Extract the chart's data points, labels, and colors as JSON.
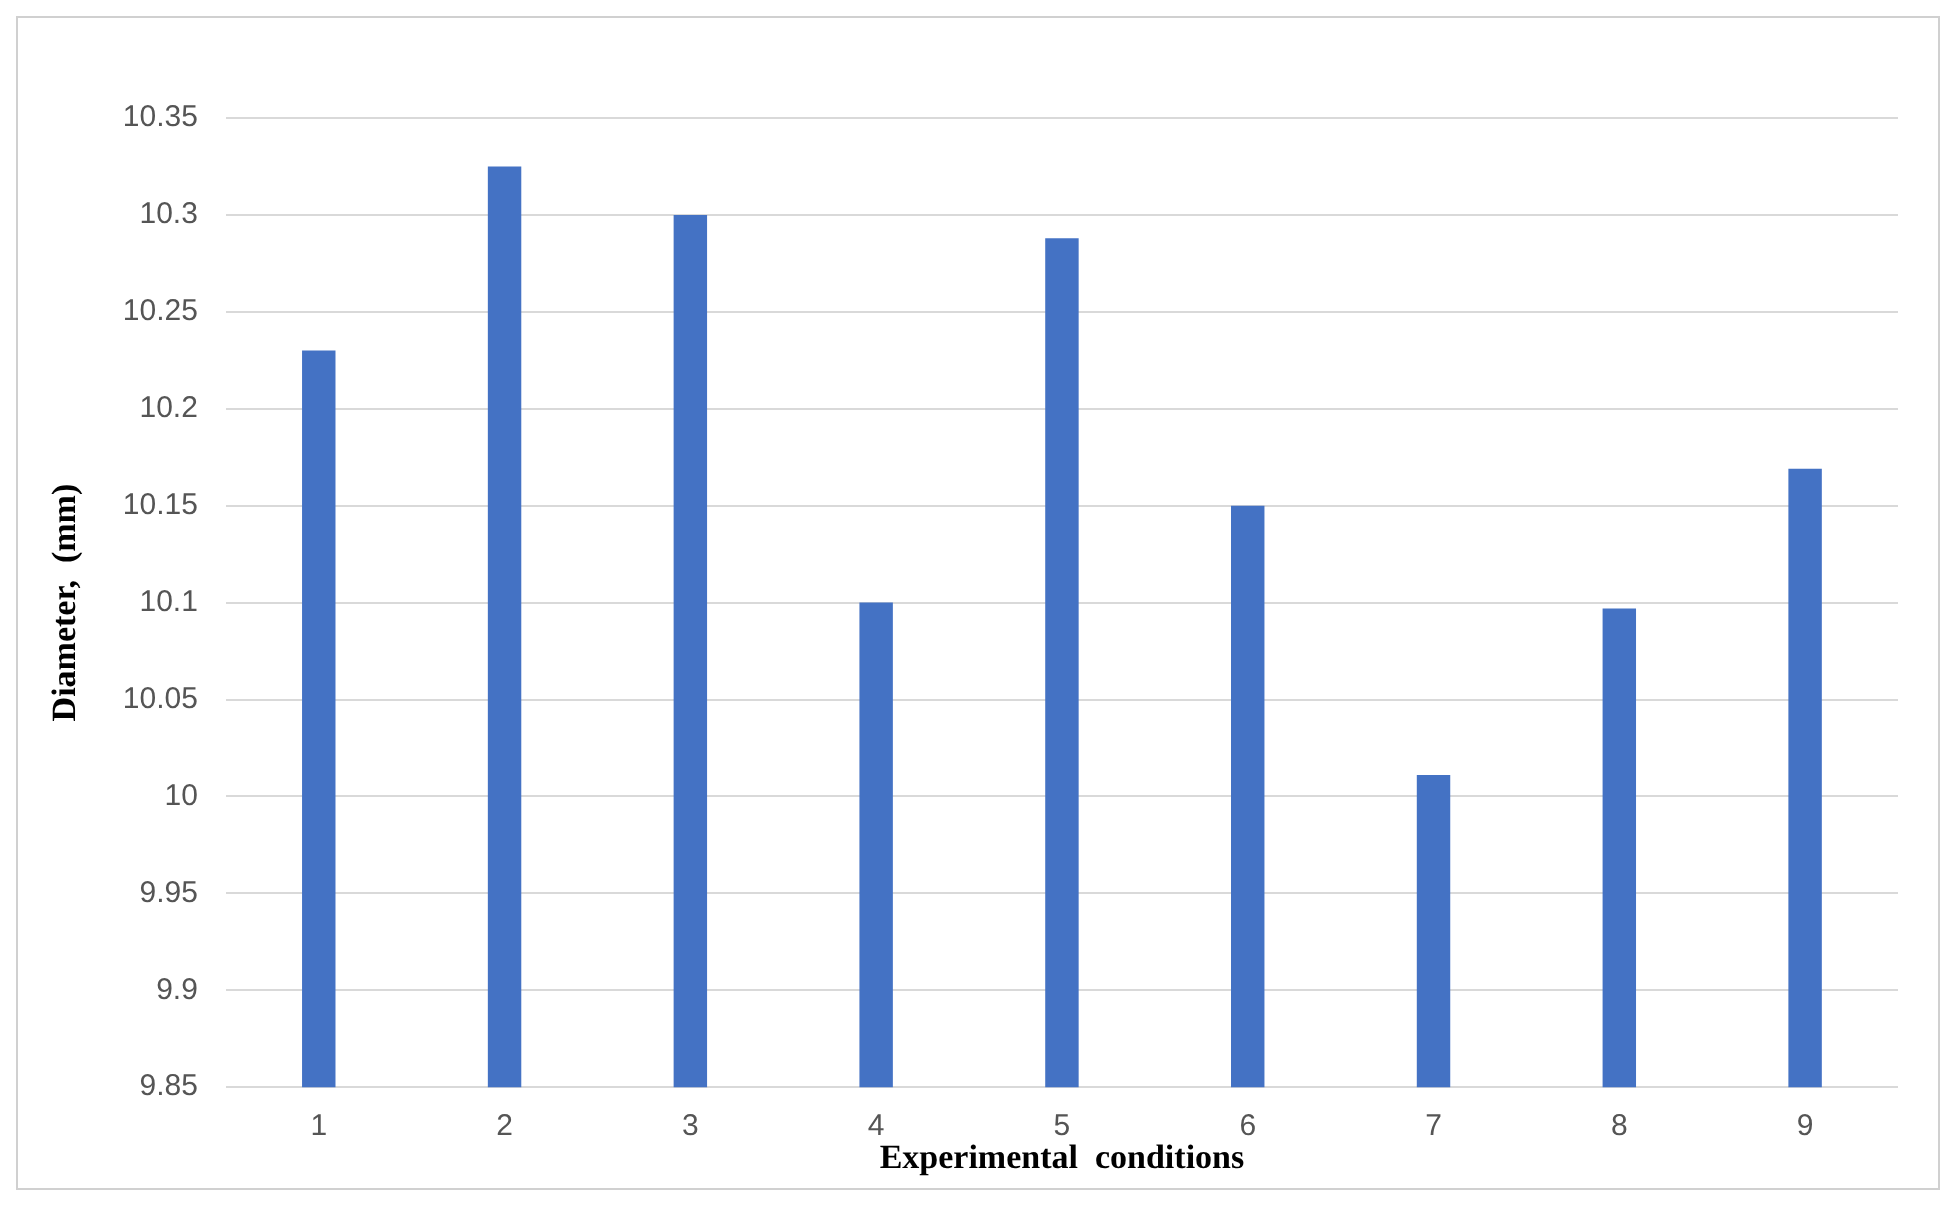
{
  "chart_data": {
    "type": "bar",
    "xlabel": "Experimental  conditions",
    "ylabel": "Diameter,  (mm)",
    "categories": [
      "1",
      "2",
      "3",
      "4",
      "5",
      "6",
      "7",
      "8",
      "9"
    ],
    "values": [
      10.23,
      10.325,
      10.3,
      10.1,
      10.288,
      10.15,
      10.011,
      10.097,
      10.169
    ],
    "color": "#4472c4",
    "ylim": [
      9.85,
      10.35
    ],
    "yticks": [
      9.85,
      9.9,
      9.95,
      10,
      10.05,
      10.1,
      10.15,
      10.2,
      10.25,
      10.3,
      10.35
    ],
    "grid": "y"
  }
}
